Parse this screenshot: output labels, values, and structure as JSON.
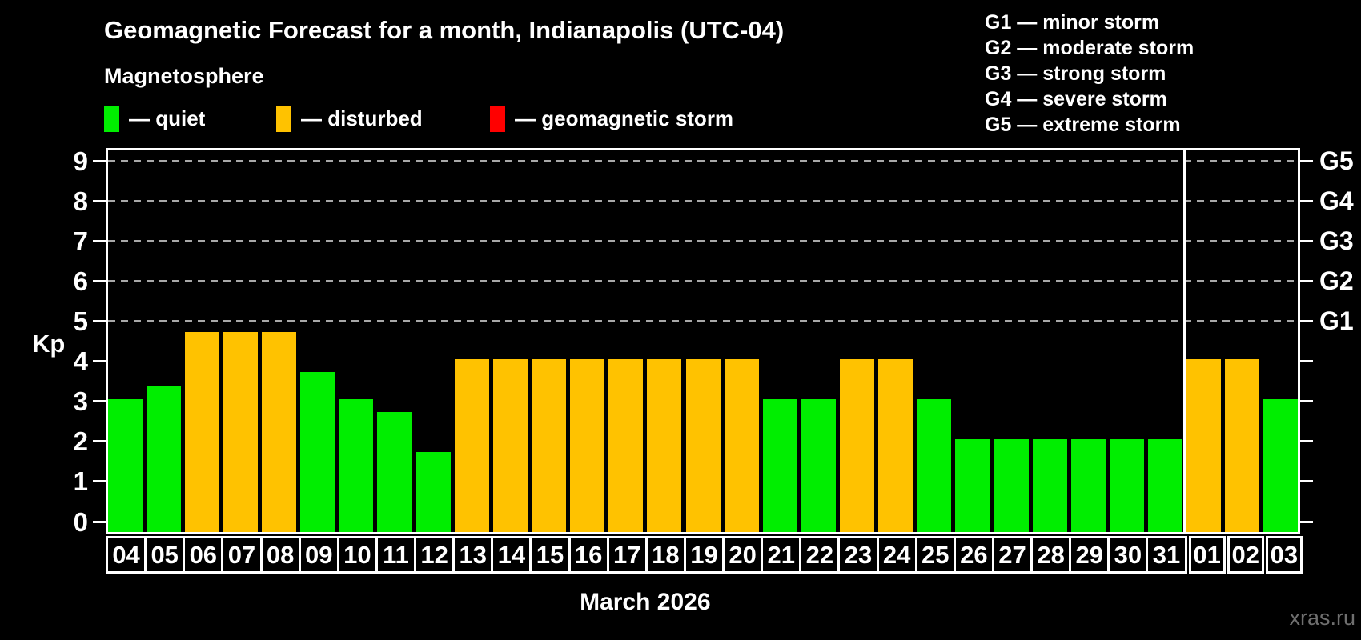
{
  "page": {
    "title": "Geomagnetic Forecast for a month, Indianapolis (UTC-04)",
    "subtitle": "Magnetosphere",
    "month_label": "March 2026",
    "watermark": "xras.ru"
  },
  "legend": {
    "items": [
      {
        "key": "quiet",
        "swatch_color": "#00ee00",
        "label": "— quiet"
      },
      {
        "key": "disturbed",
        "swatch_color": "#ffc200",
        "label": "— disturbed"
      },
      {
        "key": "storm",
        "swatch_color": "#ff0000",
        "label": "— geomagnetic storm"
      }
    ]
  },
  "g_scale_legend": [
    {
      "code": "G1",
      "label": "minor storm"
    },
    {
      "code": "G2",
      "label": "moderate storm"
    },
    {
      "code": "G3",
      "label": "strong storm"
    },
    {
      "code": "G4",
      "label": "severe storm"
    },
    {
      "code": "G5",
      "label": "extreme storm"
    }
  ],
  "chart_data": {
    "type": "bar",
    "title": "Geomagnetic Forecast for a month, Indianapolis (UTC-04)",
    "ylabel": "Kp",
    "ylim": [
      0,
      9
    ],
    "y_ticks": [
      0,
      1,
      2,
      3,
      4,
      5,
      6,
      7,
      8,
      9
    ],
    "gridlines_at": [
      5,
      6,
      7,
      8,
      9
    ],
    "right_axis_labels": {
      "5": "G1",
      "6": "G2",
      "7": "G3",
      "8": "G4",
      "9": "G5"
    },
    "x_month": "March 2026",
    "categories": [
      "04",
      "05",
      "06",
      "07",
      "08",
      "09",
      "10",
      "11",
      "12",
      "13",
      "14",
      "15",
      "16",
      "17",
      "18",
      "19",
      "20",
      "21",
      "22",
      "23",
      "24",
      "25",
      "26",
      "27",
      "28",
      "29",
      "30",
      "31",
      "01",
      "02",
      "03"
    ],
    "values": [
      3,
      3.33,
      4.67,
      4.67,
      4.67,
      3.67,
      3,
      2.67,
      1.67,
      4,
      4,
      4,
      4,
      4,
      4,
      4,
      4,
      3,
      3,
      4,
      4,
      3,
      2,
      2,
      2,
      2,
      2,
      2,
      4,
      4,
      3
    ],
    "states": [
      "quiet",
      "quiet",
      "disturbed",
      "disturbed",
      "disturbed",
      "quiet",
      "quiet",
      "quiet",
      "quiet",
      "disturbed",
      "disturbed",
      "disturbed",
      "disturbed",
      "disturbed",
      "disturbed",
      "disturbed",
      "disturbed",
      "quiet",
      "quiet",
      "disturbed",
      "disturbed",
      "quiet",
      "quiet",
      "quiet",
      "quiet",
      "quiet",
      "quiet",
      "quiet",
      "disturbed",
      "disturbed",
      "quiet"
    ],
    "state_colors": {
      "quiet": "#00ee00",
      "disturbed": "#ffc200",
      "storm": "#ff0000"
    },
    "month_separator_after_index": 27
  }
}
